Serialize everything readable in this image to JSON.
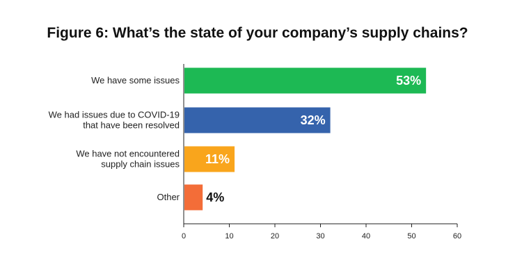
{
  "chart_data": {
    "type": "bar",
    "orientation": "horizontal",
    "title": "Figure 6:  What’s the state of your company’s supply chains?",
    "categories": [
      [
        "We have some issues"
      ],
      [
        "We had issues due to COVID-19",
        "that have been resolved"
      ],
      [
        "We have not encountered",
        "supply chain issues"
      ],
      [
        "Other"
      ]
    ],
    "values": [
      53,
      32,
      11,
      4
    ],
    "data_labels": [
      "53%",
      "32%",
      "11%",
      "4%"
    ],
    "colors": [
      "#1db954",
      "#3563ac",
      "#f9a51c",
      "#f36d38"
    ],
    "label_colors": [
      "#ffffff",
      "#ffffff",
      "#ffffff",
      "#111111"
    ],
    "xlim": [
      0,
      60
    ],
    "xticks": [
      "0",
      "10",
      "20",
      "30",
      "40",
      "50",
      "60"
    ],
    "xlabel": "",
    "ylabel": "",
    "grid": false,
    "legend": "none"
  }
}
